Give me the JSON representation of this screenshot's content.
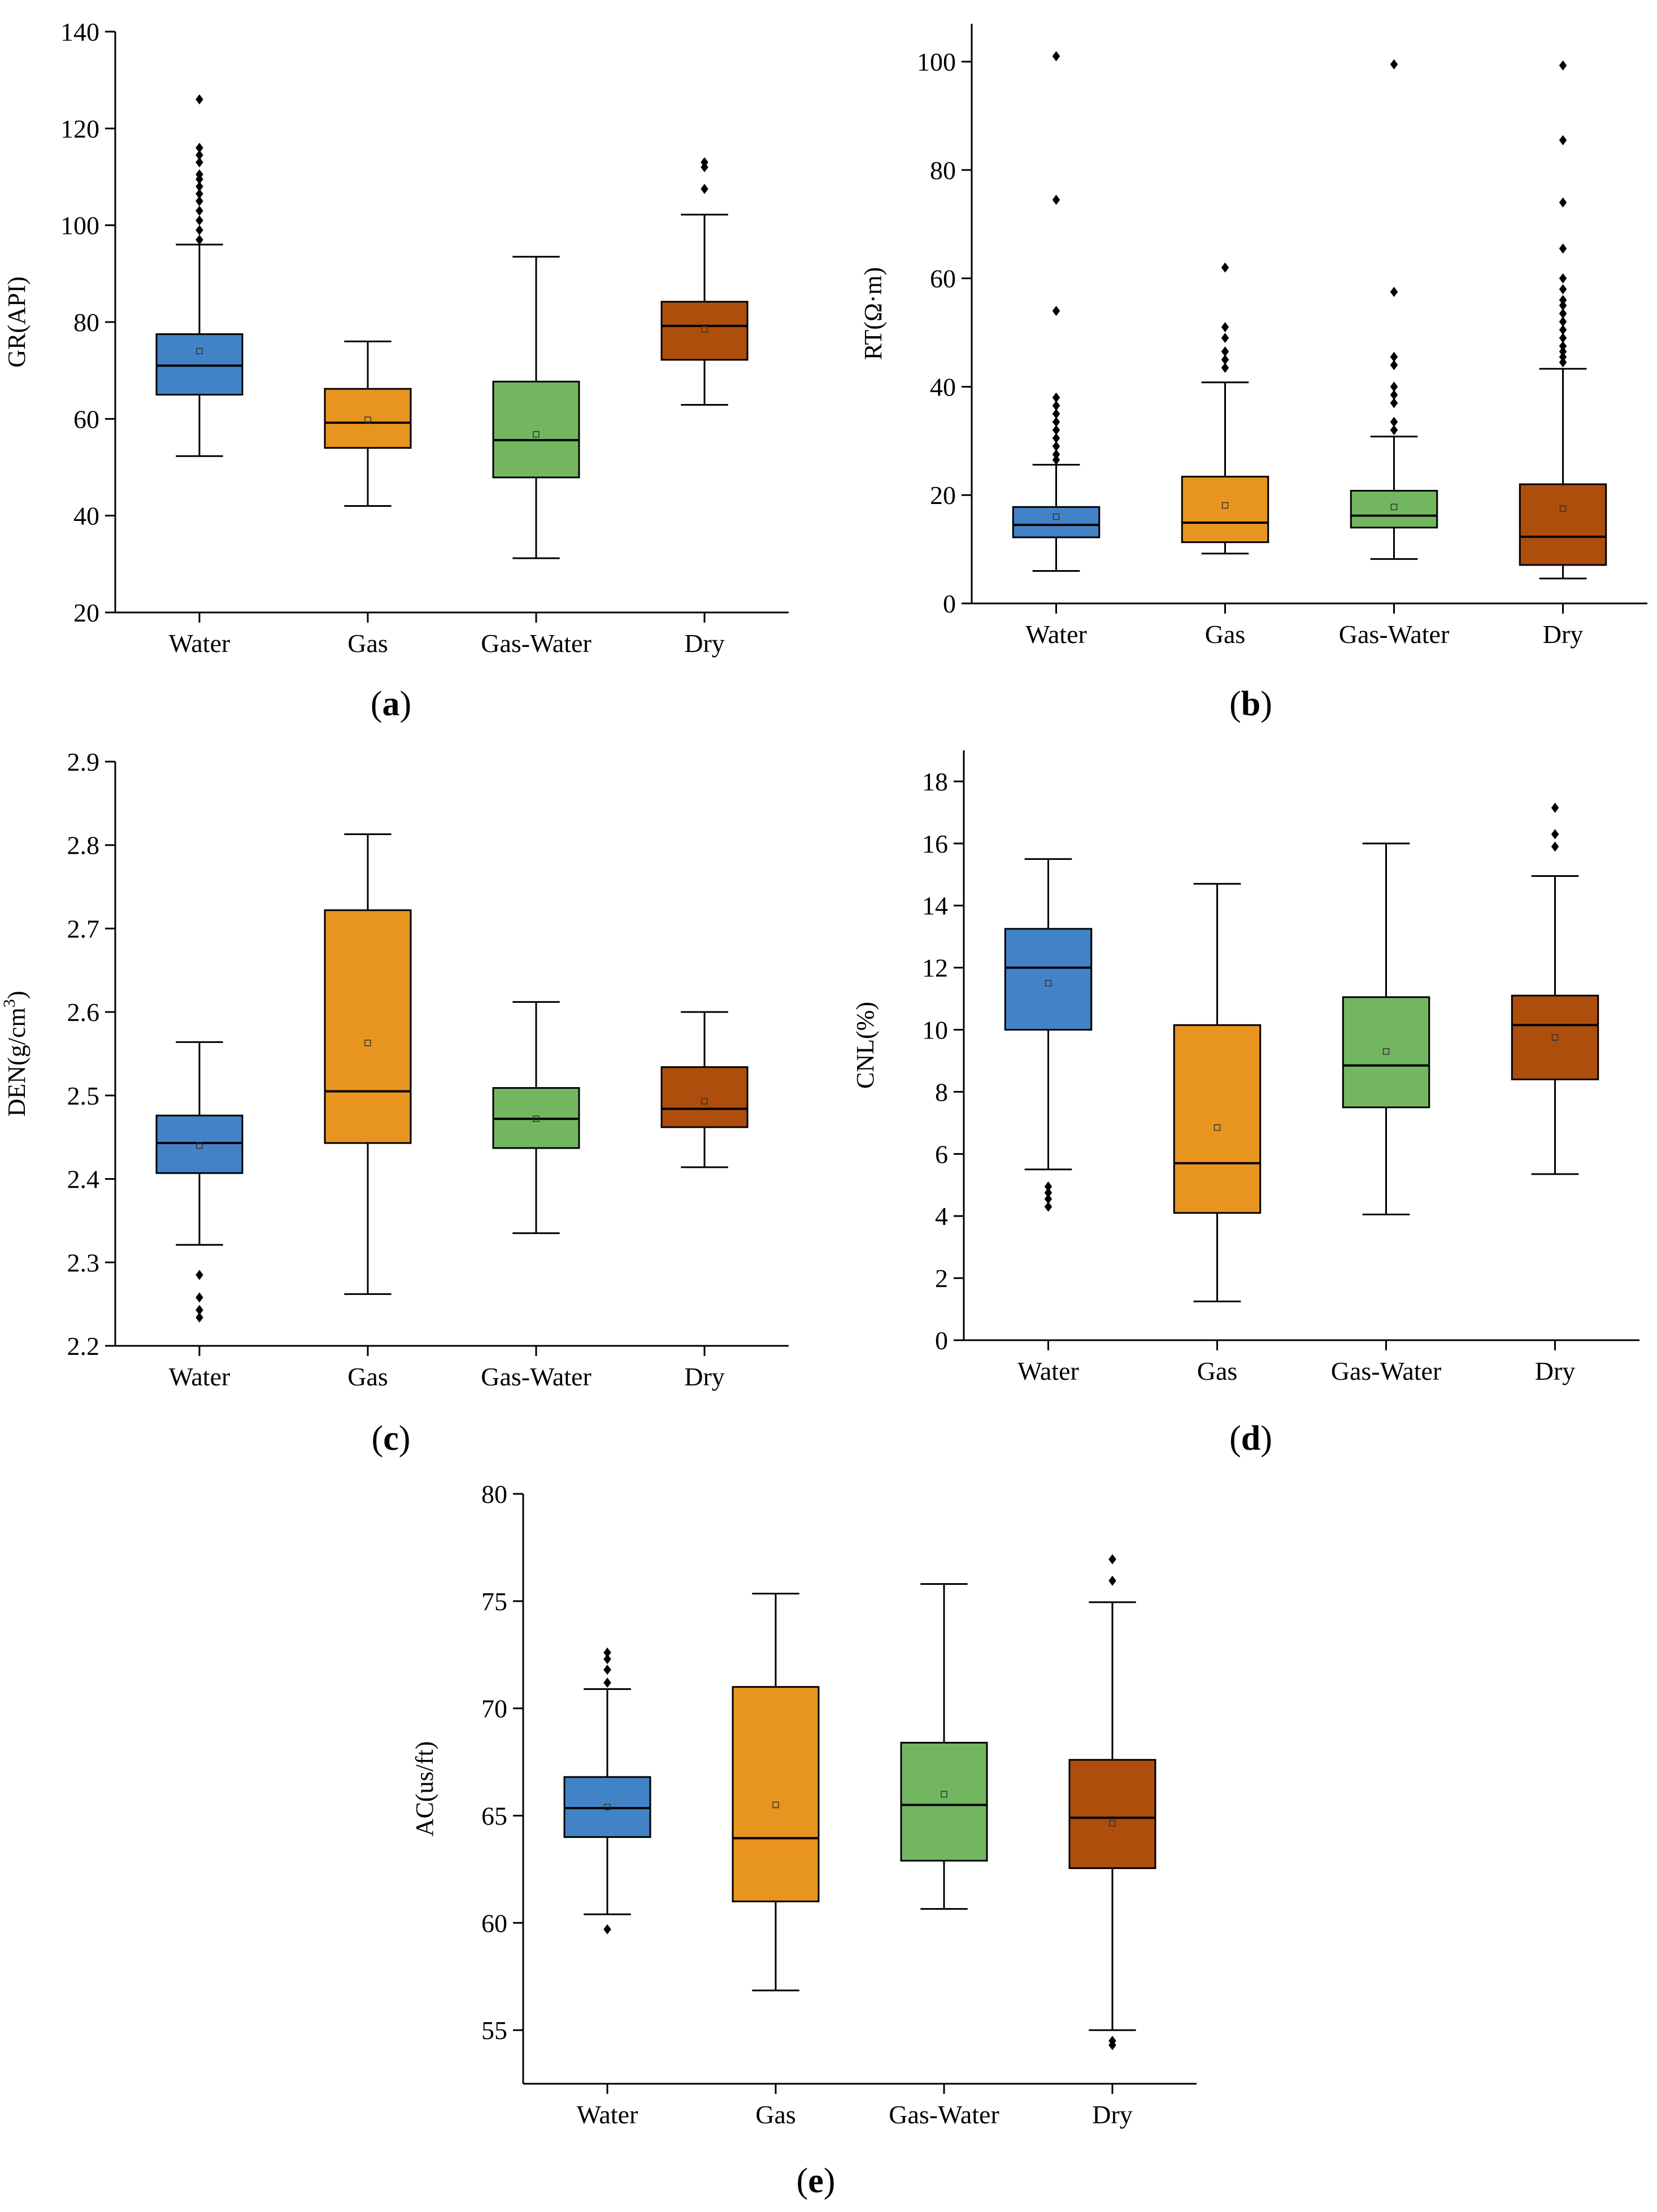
{
  "categories": [
    "Water",
    "Gas",
    "Gas-Water",
    "Dry"
  ],
  "colors": {
    "Water": "#4283c8",
    "Gas": "#e8951f",
    "Gas-Water": "#72b760",
    "Dry": "#ae4e0c"
  },
  "chart_data": [
    {
      "type": "box",
      "panel": "a",
      "ylabel": "GR(API)",
      "ylim": [
        20,
        140
      ],
      "yticks": [
        20,
        40,
        60,
        80,
        100,
        120,
        140
      ],
      "categories": [
        "Water",
        "Gas",
        "Gas-Water",
        "Dry"
      ],
      "boxes": [
        {
          "name": "Water",
          "whislo": 52.3,
          "q1": 65.0,
          "med": 71.0,
          "q3": 77.5,
          "whishi": 96.0,
          "mean": 74.0,
          "fliers": [
            97,
            99,
            101,
            103,
            105,
            106.5,
            108,
            109.5,
            110.5,
            113,
            114.5,
            116,
            126
          ]
        },
        {
          "name": "Gas",
          "whislo": 42.0,
          "q1": 54.0,
          "med": 59.2,
          "q3": 66.2,
          "whishi": 76.0,
          "mean": 59.8,
          "fliers": []
        },
        {
          "name": "Gas-Water",
          "whislo": 31.2,
          "q1": 47.9,
          "med": 55.6,
          "q3": 67.7,
          "whishi": 93.5,
          "mean": 56.8,
          "fliers": []
        },
        {
          "name": "Dry",
          "whislo": 62.9,
          "q1": 72.2,
          "med": 79.2,
          "q3": 84.2,
          "whishi": 102.2,
          "mean": 78.5,
          "fliers": [
            107.5,
            112,
            113
          ]
        }
      ]
    },
    {
      "type": "box",
      "panel": "b",
      "ylabel": "RT(Ω·m)",
      "ylim": [
        0,
        107
      ],
      "yticks": [
        0,
        20,
        40,
        60,
        80,
        100
      ],
      "categories": [
        "Water",
        "Gas",
        "Gas-Water",
        "Dry"
      ],
      "boxes": [
        {
          "name": "Water",
          "whislo": 6.0,
          "q1": 12.2,
          "med": 14.5,
          "q3": 17.8,
          "whishi": 25.6,
          "mean": 16.0,
          "fliers": [
            26.5,
            27.5,
            29,
            30.5,
            32,
            33.5,
            35,
            36.5,
            38,
            54,
            74.5,
            101
          ]
        },
        {
          "name": "Gas",
          "whislo": 9.2,
          "q1": 11.3,
          "med": 14.9,
          "q3": 23.4,
          "whishi": 40.8,
          "mean": 18.1,
          "fliers": [
            43.5,
            45,
            46.5,
            49,
            51,
            62
          ]
        },
        {
          "name": "Gas-Water",
          "whislo": 8.2,
          "q1": 14.0,
          "med": 16.2,
          "q3": 20.8,
          "whishi": 30.8,
          "mean": 17.8,
          "fliers": [
            32,
            33.5,
            37,
            38.5,
            40,
            44,
            45.5,
            57.5,
            99.5
          ]
        },
        {
          "name": "Dry",
          "whislo": 4.6,
          "q1": 7.1,
          "med": 12.3,
          "q3": 22.0,
          "whishi": 43.3,
          "mean": 17.5,
          "fliers": [
            44.5,
            45.5,
            46.5,
            47.5,
            49,
            50.5,
            52,
            53.5,
            55,
            56,
            58,
            60,
            65.5,
            74,
            85.5,
            99.3
          ]
        }
      ]
    },
    {
      "type": "box",
      "panel": "c",
      "ylabel": "DEN(g/cm3)",
      "ylabel_parts": {
        "base": "DEN(g/cm",
        "sup": "3",
        "close": ")"
      },
      "ylim": [
        2.2,
        2.9
      ],
      "yticks": [
        2.2,
        2.3,
        2.4,
        2.5,
        2.6,
        2.7,
        2.8,
        2.9
      ],
      "categories": [
        "Water",
        "Gas",
        "Gas-Water",
        "Dry"
      ],
      "boxes": [
        {
          "name": "Water",
          "whislo": 2.321,
          "q1": 2.407,
          "med": 2.443,
          "q3": 2.476,
          "whishi": 2.564,
          "mean": 2.44,
          "fliers": [
            2.285,
            2.258,
            2.243,
            2.234
          ]
        },
        {
          "name": "Gas",
          "whislo": 2.262,
          "q1": 2.443,
          "med": 2.505,
          "q3": 2.722,
          "whishi": 2.813,
          "mean": 2.563,
          "fliers": []
        },
        {
          "name": "Gas-Water",
          "whislo": 2.335,
          "q1": 2.437,
          "med": 2.472,
          "q3": 2.509,
          "whishi": 2.612,
          "mean": 2.472,
          "fliers": []
        },
        {
          "name": "Dry",
          "whislo": 2.414,
          "q1": 2.462,
          "med": 2.484,
          "q3": 2.534,
          "whishi": 2.6,
          "mean": 2.493,
          "fliers": []
        }
      ]
    },
    {
      "type": "box",
      "panel": "d",
      "ylabel": "CNL(%)",
      "ylim": [
        0,
        19
      ],
      "yticks": [
        0,
        2,
        4,
        6,
        8,
        10,
        12,
        14,
        16,
        18
      ],
      "categories": [
        "Water",
        "Gas",
        "Gas-Water",
        "Dry"
      ],
      "boxes": [
        {
          "name": "Water",
          "whislo": 5.5,
          "q1": 10.0,
          "med": 12.0,
          "q3": 13.25,
          "whishi": 15.5,
          "mean": 11.5,
          "fliers": [
            4.95,
            4.75,
            4.55,
            4.3
          ]
        },
        {
          "name": "Gas",
          "whislo": 1.25,
          "q1": 4.1,
          "med": 5.7,
          "q3": 10.15,
          "whishi": 14.7,
          "mean": 6.85,
          "fliers": []
        },
        {
          "name": "Gas-Water",
          "whislo": 4.05,
          "q1": 7.5,
          "med": 8.85,
          "q3": 11.05,
          "whishi": 16.0,
          "mean": 9.3,
          "fliers": []
        },
        {
          "name": "Dry",
          "whislo": 5.35,
          "q1": 8.4,
          "med": 10.15,
          "q3": 11.1,
          "whishi": 14.95,
          "mean": 9.75,
          "fliers": [
            15.9,
            16.3,
            17.15
          ]
        }
      ]
    },
    {
      "type": "box",
      "panel": "e",
      "ylabel": "AC(us/ft)",
      "ylim": [
        52.5,
        80
      ],
      "yticks": [
        55,
        60,
        65,
        70,
        75,
        80
      ],
      "categories": [
        "Water",
        "Gas",
        "Gas-Water",
        "Dry"
      ],
      "boxes": [
        {
          "name": "Water",
          "whislo": 60.4,
          "q1": 64.0,
          "med": 65.35,
          "q3": 66.8,
          "whishi": 70.9,
          "mean": 65.4,
          "fliers": [
            71.2,
            71.8,
            72.3,
            72.6,
            59.7
          ]
        },
        {
          "name": "Gas",
          "whislo": 56.85,
          "q1": 61.0,
          "med": 63.95,
          "q3": 71.0,
          "whishi": 75.35,
          "mean": 65.5,
          "fliers": []
        },
        {
          "name": "Gas-Water",
          "whislo": 60.65,
          "q1": 62.9,
          "med": 65.5,
          "q3": 68.4,
          "whishi": 75.8,
          "mean": 66.0,
          "fliers": []
        },
        {
          "name": "Dry",
          "whislo": 55.0,
          "q1": 62.55,
          "med": 64.9,
          "q3": 67.6,
          "whishi": 74.95,
          "mean": 64.65,
          "fliers": [
            75.95,
            76.95,
            54.5,
            54.3
          ]
        }
      ]
    }
  ],
  "panel_labels": {
    "a": "a",
    "b": "b",
    "c": "c",
    "d": "d",
    "e": "e"
  }
}
